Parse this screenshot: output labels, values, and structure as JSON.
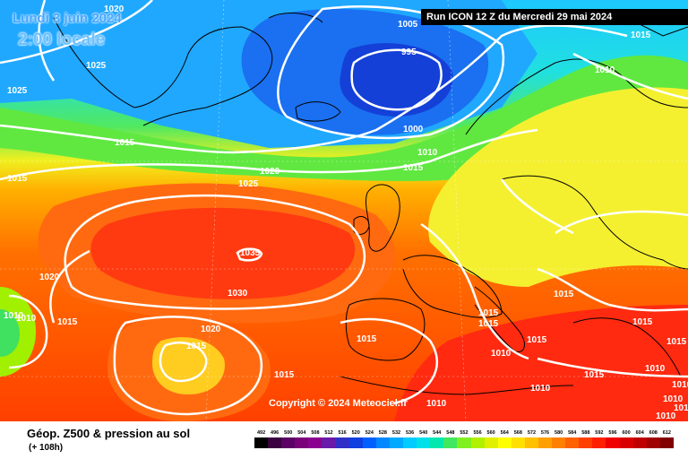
{
  "header": {
    "date": "Lundi 3 juin 2024",
    "time": "2:00 locale",
    "run": "Run ICON 12 Z du Mercredi 29 mai 2024"
  },
  "copyright": "Copyright © 2024 Meteociel.fr",
  "legend": {
    "title": "Géop. Z500 & pression au sol",
    "subtitle": "(+ 108h)",
    "values": [
      "492",
      "496",
      "500",
      "504",
      "508",
      "512",
      "516",
      "520",
      "524",
      "528",
      "532",
      "536",
      "540",
      "544",
      "548",
      "552",
      "556",
      "560",
      "564",
      "568",
      "572",
      "576",
      "580",
      "584",
      "588",
      "592",
      "596",
      "600",
      "604",
      "608",
      "612"
    ],
    "colors": [
      "#000000",
      "#3b0040",
      "#5c0066",
      "#7a007a",
      "#8a008f",
      "#6a1aa8",
      "#3030c8",
      "#1040e0",
      "#0060ff",
      "#0088ff",
      "#00aaff",
      "#00ccff",
      "#00e0e8",
      "#00e8b0",
      "#40e860",
      "#80f020",
      "#b0f000",
      "#e0f000",
      "#ffff00",
      "#ffe000",
      "#ffc000",
      "#ffa000",
      "#ff8000",
      "#ff6000",
      "#ff4000",
      "#ff2000",
      "#f00000",
      "#d80000",
      "#c00000",
      "#a00000",
      "#800000"
    ]
  },
  "isobars": {
    "l1": "1020",
    "l2": "1025",
    "l3": "1025",
    "l4": "1015",
    "l5": "1015",
    "l6": "1005",
    "l7": "995",
    "l8": "1000",
    "l9": "1010",
    "l10": "1015",
    "l11": "1015",
    "l12": "1010",
    "l13": "1020",
    "l14": "1025",
    "l15": "1035",
    "l16": "1030",
    "l17": "1020",
    "l18": "1015",
    "l19": "1010",
    "l20": "1010",
    "l21": "1015",
    "l22": "1020",
    "l23": "1015",
    "l24": "1010",
    "l25": "1015",
    "l26": "1015",
    "l27": "1015",
    "l28": "1015",
    "l29": "1015",
    "l30": "1015",
    "l31": "1010",
    "l32": "1015",
    "l33": "1010",
    "l34": "1010",
    "l35": "1015",
    "l36": "1010",
    "l37": "1010",
    "l38": "1010",
    "l39": "1010"
  }
}
